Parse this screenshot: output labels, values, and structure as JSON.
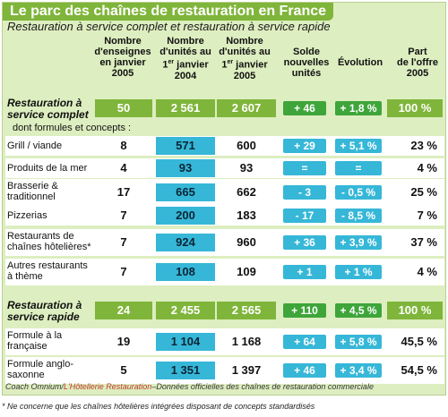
{
  "title": "Le parc des chaînes de restauration en France",
  "subtitle": "Restauration à service complet et restauration à service rapide",
  "headers": {
    "enseignes": "Nombre d'enseignes en janvier 2005",
    "unites_2004": "Nombre d'unités au 1er janvier 2004",
    "unites_2005": "Nombre d'unités au 1er janvier 2005",
    "solde": "Solde nouvelles unités",
    "evolution": "Évolution",
    "part": "Part de l'offre 2005"
  },
  "subgroup_label": "dont formules et concepts :",
  "rows": [
    {
      "label": "Restauration à service complet",
      "bold": true,
      "enseignes": "50",
      "u2004": "2 561",
      "u2005": "2 607",
      "solde": "+ 46",
      "evolution": "+ 1,8 %",
      "part": "100 %"
    },
    {
      "label": "Grill / viande",
      "enseignes": "8",
      "u2004": "571",
      "u2005": "600",
      "solde": "+ 29",
      "evolution": "+ 5,1 %",
      "part": "23 %"
    },
    {
      "label": "Produits de la mer",
      "enseignes": "4",
      "u2004": "93",
      "u2005": "93",
      "solde": "=",
      "evolution": "=",
      "part": "4 %"
    },
    {
      "label": "Brasserie & traditionnel",
      "enseignes": "17",
      "u2004": "665",
      "u2005": "662",
      "solde": "- 3",
      "evolution": "- 0,5 %",
      "part": "25 %"
    },
    {
      "label": "Pizzerias",
      "enseignes": "7",
      "u2004": "200",
      "u2005": "183",
      "solde": "- 17",
      "evolution": "- 8,5 %",
      "part": "7 %"
    },
    {
      "label": "Restaurants de chaînes hôtelières*",
      "enseignes": "7",
      "u2004": "924",
      "u2005": "960",
      "solde": "+ 36",
      "evolution": "+ 3,9 %",
      "part": "37 %"
    },
    {
      "label": "Autres restaurants à thème",
      "enseignes": "7",
      "u2004": "108",
      "u2005": "109",
      "solde": "+ 1",
      "evolution": "+ 1 %",
      "part": "4 %"
    },
    {
      "label": "Restauration à service rapide",
      "bold": true,
      "enseignes": "24",
      "u2004": "2 455",
      "u2005": "2 565",
      "solde": "+ 110",
      "evolution": "+ 4,5 %",
      "part": "100 %"
    },
    {
      "label": "Formule à la française",
      "enseignes": "19",
      "u2004": "1 104",
      "u2005": "1 168",
      "solde": "+ 64",
      "evolution": "+ 5,8 %",
      "part": "45,5 %"
    },
    {
      "label": "Formule anglo-saxonne",
      "enseignes": "5",
      "u2004": "1 351",
      "u2005": "1 397",
      "solde": "+ 46",
      "evolution": "+ 3,4 %",
      "part": "54,5 %"
    }
  ],
  "credit": {
    "pre": "Coach Omnium/",
    "red": "L'Hôtellerie Restauration",
    "post": "–Données officielles des chaînes de restauration commerciale"
  },
  "footnote": "* Ne concerne que les chaînes hôtelières intégrées disposant de concepts standardisés",
  "colors": {
    "green": "#7fb53a",
    "light_green": "#ddeec0",
    "blue": "#36b7d8",
    "pill_green": "#3ea53a"
  }
}
